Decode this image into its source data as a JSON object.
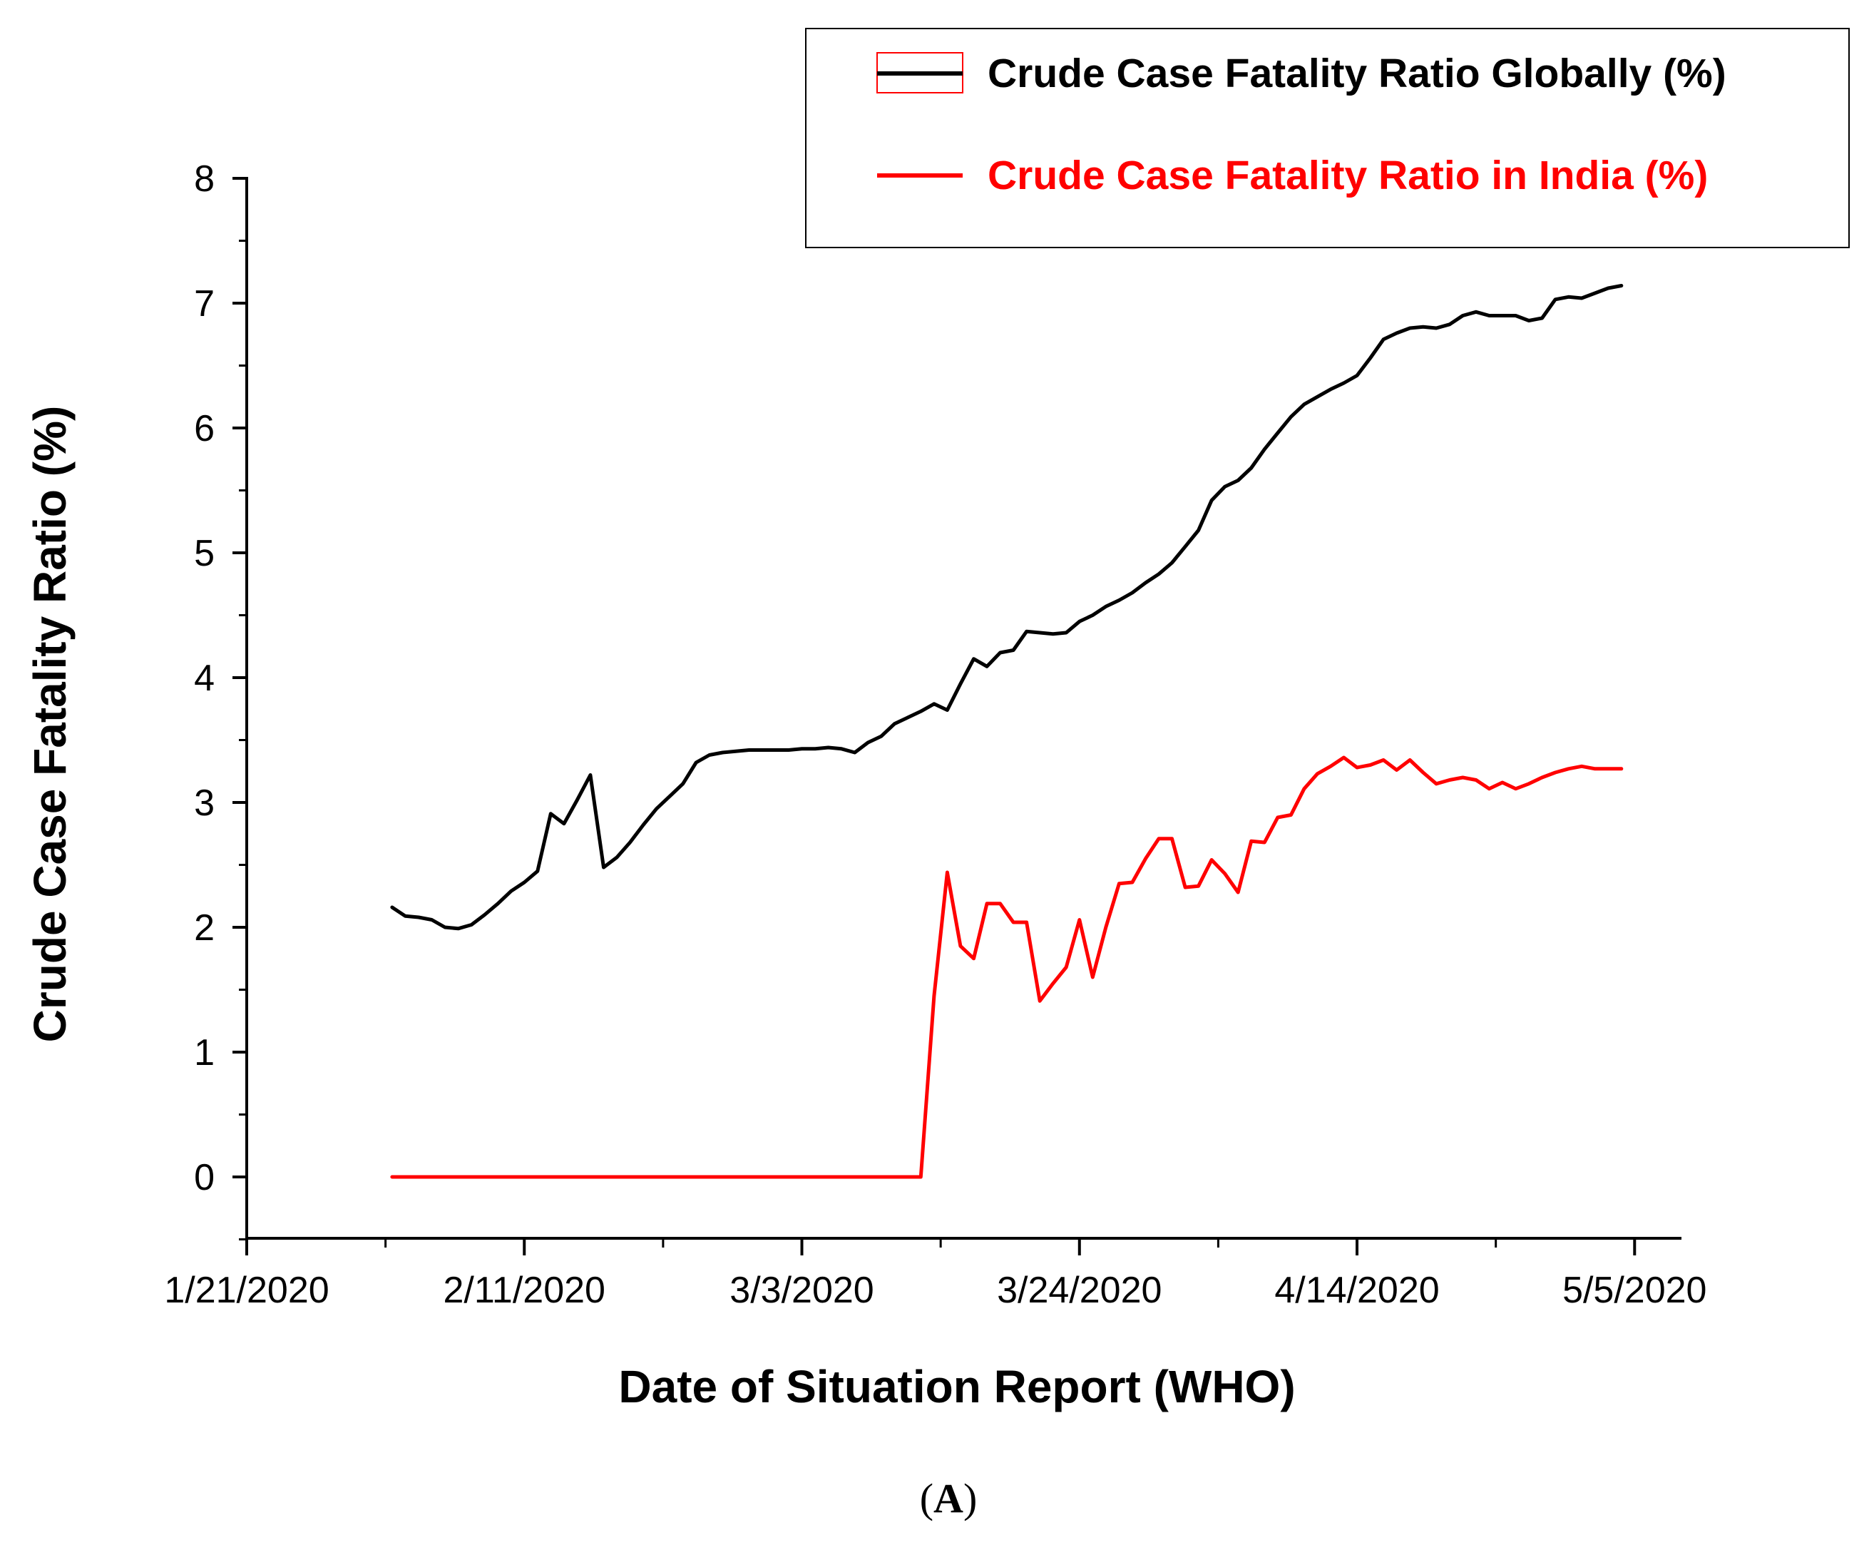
{
  "chart_data": {
    "type": "line",
    "title": "",
    "xlabel": "Date of Situation Report (WHO)",
    "ylabel": "Crude Case Fatality Ratio (%)",
    "ylim": [
      -0.5,
      8
    ],
    "yticks": [
      0,
      1,
      2,
      3,
      4,
      5,
      6,
      7,
      8
    ],
    "xlim": [
      0,
      111
    ],
    "xticks": [
      {
        "day": 0,
        "label": "1/21/2020"
      },
      {
        "day": 21,
        "label": "2/11/2020"
      },
      {
        "day": 42,
        "label": "3/3/2020"
      },
      {
        "day": 63,
        "label": "3/24/2020"
      },
      {
        "day": 84,
        "label": "4/14/2020"
      },
      {
        "day": 105,
        "label": "5/5/2020"
      }
    ],
    "x_unit": "days since 1/21/2020",
    "legend_position": "top-right",
    "series": [
      {
        "name": "Crude Case Fatality Ratio Globally (%)",
        "color": "#000000",
        "x": [
          11,
          12,
          13,
          14,
          15,
          16,
          17,
          18,
          19,
          20,
          21,
          22,
          23,
          24,
          25,
          26,
          27,
          28,
          29,
          30,
          31,
          32,
          33,
          34,
          35,
          36,
          37,
          38,
          39,
          40,
          41,
          42,
          43,
          44,
          45,
          46,
          47,
          48,
          49,
          50,
          51,
          52,
          53,
          54,
          55,
          56,
          57,
          58,
          59,
          60,
          61,
          62,
          63,
          64,
          65,
          66,
          67,
          68,
          69,
          70,
          71,
          72,
          73,
          74,
          75,
          76,
          77,
          78,
          79,
          80,
          81,
          82,
          83,
          84,
          85,
          86,
          87,
          88,
          89,
          90,
          91,
          92,
          93,
          94,
          95,
          96,
          97,
          98,
          99,
          100,
          101,
          102,
          103,
          104
        ],
        "values": [
          2.16,
          2.09,
          2.08,
          2.06,
          2.0,
          1.99,
          2.02,
          2.1,
          2.19,
          2.29,
          2.36,
          2.45,
          2.91,
          2.83,
          3.02,
          3.22,
          2.48,
          2.56,
          2.68,
          2.82,
          2.95,
          3.05,
          3.15,
          3.32,
          3.38,
          3.4,
          3.41,
          3.42,
          3.42,
          3.42,
          3.42,
          3.43,
          3.43,
          3.44,
          3.43,
          3.4,
          3.48,
          3.53,
          3.63,
          3.68,
          3.73,
          3.79,
          3.74,
          3.95,
          4.15,
          4.09,
          4.2,
          4.22,
          4.37,
          4.36,
          4.35,
          4.36,
          4.45,
          4.5,
          4.57,
          4.62,
          4.68,
          4.76,
          4.83,
          4.92,
          5.05,
          5.18,
          5.42,
          5.53,
          5.58,
          5.68,
          5.83,
          5.96,
          6.09,
          6.19,
          6.25,
          6.31,
          6.36,
          6.42,
          6.56,
          6.71,
          6.76,
          6.8,
          6.81,
          6.8,
          6.83,
          6.9,
          6.93,
          6.9,
          6.9,
          6.9,
          6.86,
          6.88,
          7.03,
          7.05,
          7.04,
          7.08,
          7.12,
          7.14
        ]
      },
      {
        "name": "Crude Case Fatality Ratio in India (%)",
        "color": "#ff0000",
        "x": [
          11,
          51,
          52,
          53,
          54,
          55,
          56,
          57,
          58,
          59,
          60,
          61,
          62,
          63,
          64,
          65,
          66,
          67,
          68,
          69,
          70,
          71,
          72,
          73,
          74,
          75,
          76,
          77,
          78,
          79,
          80,
          81,
          82,
          83,
          84,
          85,
          86,
          87,
          88,
          89,
          90,
          91,
          92,
          93,
          94,
          95,
          96,
          97,
          98,
          99,
          100,
          101,
          102,
          103,
          104
        ],
        "values": [
          0,
          0,
          1.45,
          2.44,
          1.85,
          1.75,
          2.19,
          2.19,
          2.04,
          2.04,
          1.41,
          1.55,
          1.68,
          2.06,
          1.6,
          2.0,
          2.35,
          2.36,
          2.55,
          2.71,
          2.71,
          2.32,
          2.33,
          2.54,
          2.43,
          2.28,
          2.69,
          2.68,
          2.88,
          2.9,
          3.11,
          3.23,
          3.29,
          3.36,
          3.28,
          3.3,
          3.34,
          3.26,
          3.34,
          3.24,
          3.15,
          3.18,
          3.2,
          3.18,
          3.11,
          3.16,
          3.11,
          3.15,
          3.2,
          3.24,
          3.27,
          3.29,
          3.27,
          3.27,
          3.27
        ]
      }
    ]
  },
  "caption": {
    "open_paren": "(",
    "letter": "A",
    "close_paren": ")"
  }
}
